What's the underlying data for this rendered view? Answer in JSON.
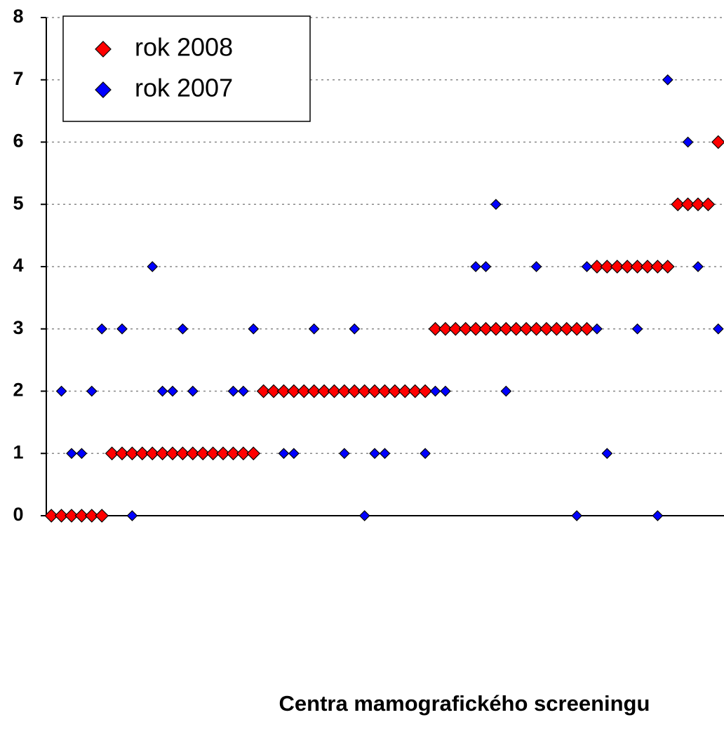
{
  "chart_data": {
    "type": "scatter",
    "x_label": "Centra mamografického screeningu",
    "xlim": [
      0.5,
      67.5
    ],
    "ylim": [
      0,
      8
    ],
    "yticks": [
      0,
      1,
      2,
      3,
      4,
      5,
      6,
      7,
      8
    ],
    "grid": true,
    "legend": "upper left",
    "series": [
      {
        "name": "rok 2008",
        "color": "#ff0000",
        "x": [
          1,
          2,
          3,
          4,
          5,
          6,
          7,
          8,
          9,
          10,
          11,
          12,
          13,
          14,
          15,
          16,
          17,
          18,
          19,
          20,
          21,
          22,
          23,
          24,
          25,
          26,
          27,
          28,
          29,
          30,
          31,
          32,
          33,
          34,
          35,
          36,
          37,
          38,
          39,
          40,
          41,
          42,
          43,
          44,
          45,
          46,
          47,
          48,
          49,
          50,
          51,
          52,
          53,
          54,
          55,
          56,
          57,
          58,
          59,
          60,
          61,
          62,
          63,
          64,
          65,
          66,
          67
        ],
        "values": [
          0,
          0,
          0,
          0,
          0,
          0,
          1,
          1,
          1,
          1,
          1,
          1,
          1,
          1,
          1,
          1,
          1,
          1,
          1,
          1,
          1,
          2,
          2,
          2,
          2,
          2,
          2,
          2,
          2,
          2,
          2,
          2,
          2,
          2,
          2,
          2,
          2,
          2,
          3,
          3,
          3,
          3,
          3,
          3,
          3,
          3,
          3,
          3,
          3,
          3,
          3,
          3,
          3,
          3,
          4,
          4,
          4,
          4,
          4,
          4,
          4,
          4,
          5,
          5,
          5,
          5,
          6
        ]
      },
      {
        "name": "rok 2007",
        "color": "#0000ff",
        "x": [
          2,
          3,
          4,
          5,
          6,
          8,
          9,
          11,
          12,
          13,
          14,
          15,
          19,
          20,
          21,
          24,
          25,
          27,
          30,
          31,
          32,
          33,
          34,
          38,
          39,
          40,
          43,
          44,
          45,
          46,
          49,
          53,
          54,
          55,
          56,
          59,
          61,
          62,
          64,
          65,
          67
        ],
        "values": [
          2,
          1,
          1,
          2,
          3,
          3,
          0,
          4,
          2,
          2,
          3,
          2,
          2,
          2,
          3,
          1,
          1,
          3,
          1,
          3,
          0,
          1,
          1,
          1,
          2,
          2,
          4,
          4,
          5,
          2,
          4,
          0,
          4,
          3,
          1,
          3,
          0,
          7,
          6,
          4,
          3
        ]
      }
    ]
  }
}
